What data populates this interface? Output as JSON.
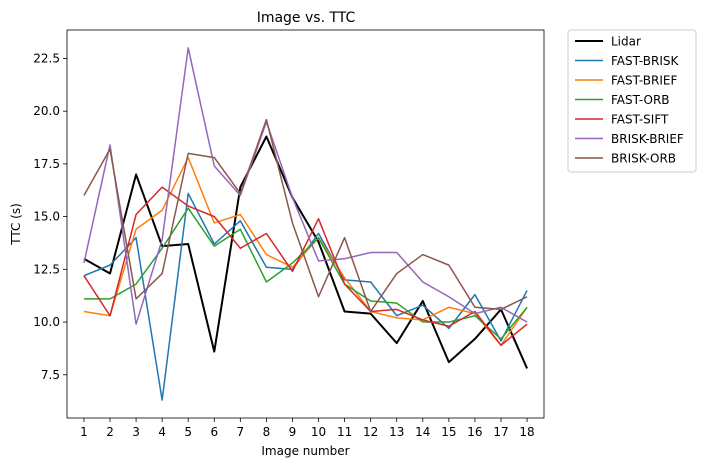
{
  "chart_data": {
    "type": "line",
    "title": "Image vs. TTC",
    "xlabel": "Image number",
    "ylabel": "TTC (s)",
    "xlim": [
      0.35,
      18.65
    ],
    "ylim": [
      5.45,
      23.85
    ],
    "x_ticks": [
      1,
      2,
      3,
      4,
      5,
      6,
      7,
      8,
      9,
      10,
      11,
      12,
      13,
      14,
      15,
      16,
      17,
      18
    ],
    "y_ticks": [
      7.5,
      10.0,
      12.5,
      15.0,
      17.5,
      20.0,
      22.5
    ],
    "y_tick_labels": [
      "7.5",
      "10.0",
      "12.5",
      "15.0",
      "17.5",
      "20.0",
      "22.5"
    ],
    "grid": false,
    "legend_placement": "outside right, top",
    "x": [
      1,
      2,
      3,
      4,
      5,
      6,
      7,
      8,
      9,
      10,
      11,
      12,
      13,
      14,
      15,
      16,
      17,
      18
    ],
    "series": [
      {
        "name": "Lidar",
        "color": "#000000",
        "width": 2,
        "values": [
          13.0,
          12.3,
          17.0,
          13.6,
          13.7,
          8.6,
          16.4,
          18.8,
          15.9,
          13.8,
          10.5,
          10.4,
          9.0,
          11.0,
          8.1,
          9.2,
          10.6,
          7.8
        ]
      },
      {
        "name": "FAST-BRISK",
        "color": "#1f77b4",
        "width": 1.5,
        "values": [
          12.2,
          12.7,
          14.0,
          6.3,
          16.1,
          13.7,
          14.8,
          12.6,
          12.5,
          14.2,
          12.0,
          11.9,
          10.3,
          10.8,
          9.7,
          11.3,
          9.1,
          11.5
        ]
      },
      {
        "name": "FAST-BRIEF",
        "color": "#ff7f0e",
        "width": 1.5,
        "values": [
          10.5,
          10.3,
          14.4,
          15.3,
          17.8,
          14.7,
          15.1,
          13.2,
          12.6,
          14.0,
          12.1,
          10.5,
          10.2,
          10.1,
          10.7,
          10.4,
          8.9,
          10.7
        ]
      },
      {
        "name": "FAST-ORB",
        "color": "#2ca02c",
        "width": 1.5,
        "values": [
          11.1,
          11.1,
          11.8,
          13.5,
          15.4,
          13.6,
          14.4,
          11.9,
          12.8,
          14.0,
          11.8,
          11.0,
          10.9,
          10.0,
          10.0,
          10.3,
          9.2,
          10.7
        ]
      },
      {
        "name": "FAST-SIFT",
        "color": "#d62728",
        "width": 1.5,
        "values": [
          12.2,
          10.3,
          15.1,
          16.4,
          15.5,
          15.0,
          13.5,
          14.2,
          12.4,
          14.9,
          11.8,
          10.5,
          10.6,
          10.1,
          9.8,
          10.5,
          8.9,
          9.9
        ]
      },
      {
        "name": "BRISK-BRIEF",
        "color": "#9467bd",
        "width": 1.5,
        "values": [
          12.8,
          18.4,
          9.9,
          13.9,
          23.0,
          17.4,
          16.0,
          19.5,
          15.9,
          12.9,
          13.0,
          13.3,
          13.3,
          11.9,
          11.2,
          10.4,
          10.7,
          10.0
        ]
      },
      {
        "name": "BRISK-ORB",
        "color": "#8c564b",
        "width": 1.5,
        "values": [
          16.0,
          18.2,
          11.1,
          12.3,
          18.0,
          17.8,
          16.1,
          19.6,
          14.7,
          11.2,
          14.0,
          10.5,
          12.3,
          13.2,
          12.7,
          10.7,
          10.6,
          11.2
        ]
      }
    ]
  }
}
